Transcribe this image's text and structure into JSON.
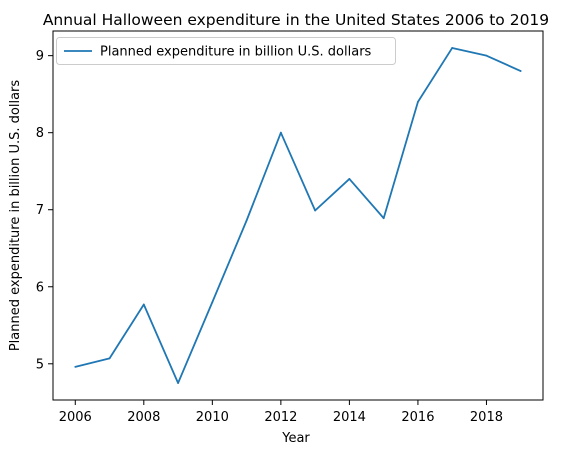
{
  "chart_data": {
    "type": "line",
    "title": "Annual Halloween expenditure in the United States 2006 to 2019",
    "xlabel": "Year",
    "ylabel": "Planned expenditure in billion U.S. dollars",
    "xlim": [
      2005.35,
      2019.65
    ],
    "ylim": [
      4.53,
      9.32
    ],
    "xticks": [
      2006,
      2008,
      2010,
      2012,
      2014,
      2016,
      2018
    ],
    "yticks": [
      5,
      6,
      7,
      8,
      9
    ],
    "grid": false,
    "legend_position": "top-left",
    "series": [
      {
        "name": "Planned expenditure in billion U.S. dollars",
        "color": "#1f77b4",
        "x": [
          2006,
          2007,
          2008,
          2009,
          2010,
          2011,
          2012,
          2013,
          2014,
          2015,
          2016,
          2017,
          2018,
          2019
        ],
        "values": [
          4.96,
          5.07,
          5.77,
          4.75,
          5.8,
          6.86,
          8.0,
          6.99,
          7.4,
          6.89,
          8.4,
          9.1,
          9.0,
          8.8
        ]
      }
    ]
  }
}
